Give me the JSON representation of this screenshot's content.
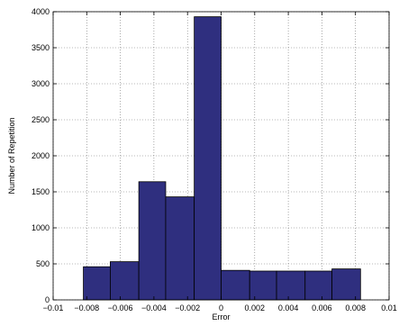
{
  "chart_data": {
    "type": "bar",
    "xlabel": "Error",
    "ylabel": "Number of Repetition",
    "xlim": [
      -0.01,
      0.01
    ],
    "ylim": [
      0,
      4000
    ],
    "grid": true,
    "bar_color": "#2f2f7f",
    "bins": [
      {
        "left": -0.0082,
        "right": -0.0066,
        "value": 460
      },
      {
        "left": -0.0066,
        "right": -0.0049,
        "value": 530
      },
      {
        "left": -0.0049,
        "right": -0.0033,
        "value": 1640
      },
      {
        "left": -0.0033,
        "right": -0.0016,
        "value": 1430
      },
      {
        "left": -0.0016,
        "right": 0.0,
        "value": 3930
      },
      {
        "left": 0.0,
        "right": 0.0017,
        "value": 410
      },
      {
        "left": 0.0017,
        "right": 0.0033,
        "value": 400
      },
      {
        "left": 0.0033,
        "right": 0.005,
        "value": 400
      },
      {
        "left": 0.005,
        "right": 0.0066,
        "value": 400
      },
      {
        "left": 0.0066,
        "right": 0.0083,
        "value": 430
      }
    ],
    "x_ticks": [
      {
        "value": -0.01,
        "label": "−0.01"
      },
      {
        "value": -0.008,
        "label": "−0.008"
      },
      {
        "value": -0.006,
        "label": "−0.006"
      },
      {
        "value": -0.004,
        "label": "−0.004"
      },
      {
        "value": -0.002,
        "label": "−0.002"
      },
      {
        "value": 0,
        "label": "0"
      },
      {
        "value": 0.002,
        "label": "0.002"
      },
      {
        "value": 0.004,
        "label": "0.004"
      },
      {
        "value": 0.006,
        "label": "0.006"
      },
      {
        "value": 0.008,
        "label": "0.008"
      },
      {
        "value": 0.01,
        "label": "0.01"
      }
    ],
    "y_ticks": [
      {
        "value": 0,
        "label": "0"
      },
      {
        "value": 500,
        "label": "500"
      },
      {
        "value": 1000,
        "label": "1000"
      },
      {
        "value": 1500,
        "label": "1500"
      },
      {
        "value": 2000,
        "label": "2000"
      },
      {
        "value": 2500,
        "label": "2500"
      },
      {
        "value": 3000,
        "label": "3000"
      },
      {
        "value": 3500,
        "label": "3500"
      },
      {
        "value": 4000,
        "label": "4000"
      }
    ]
  }
}
